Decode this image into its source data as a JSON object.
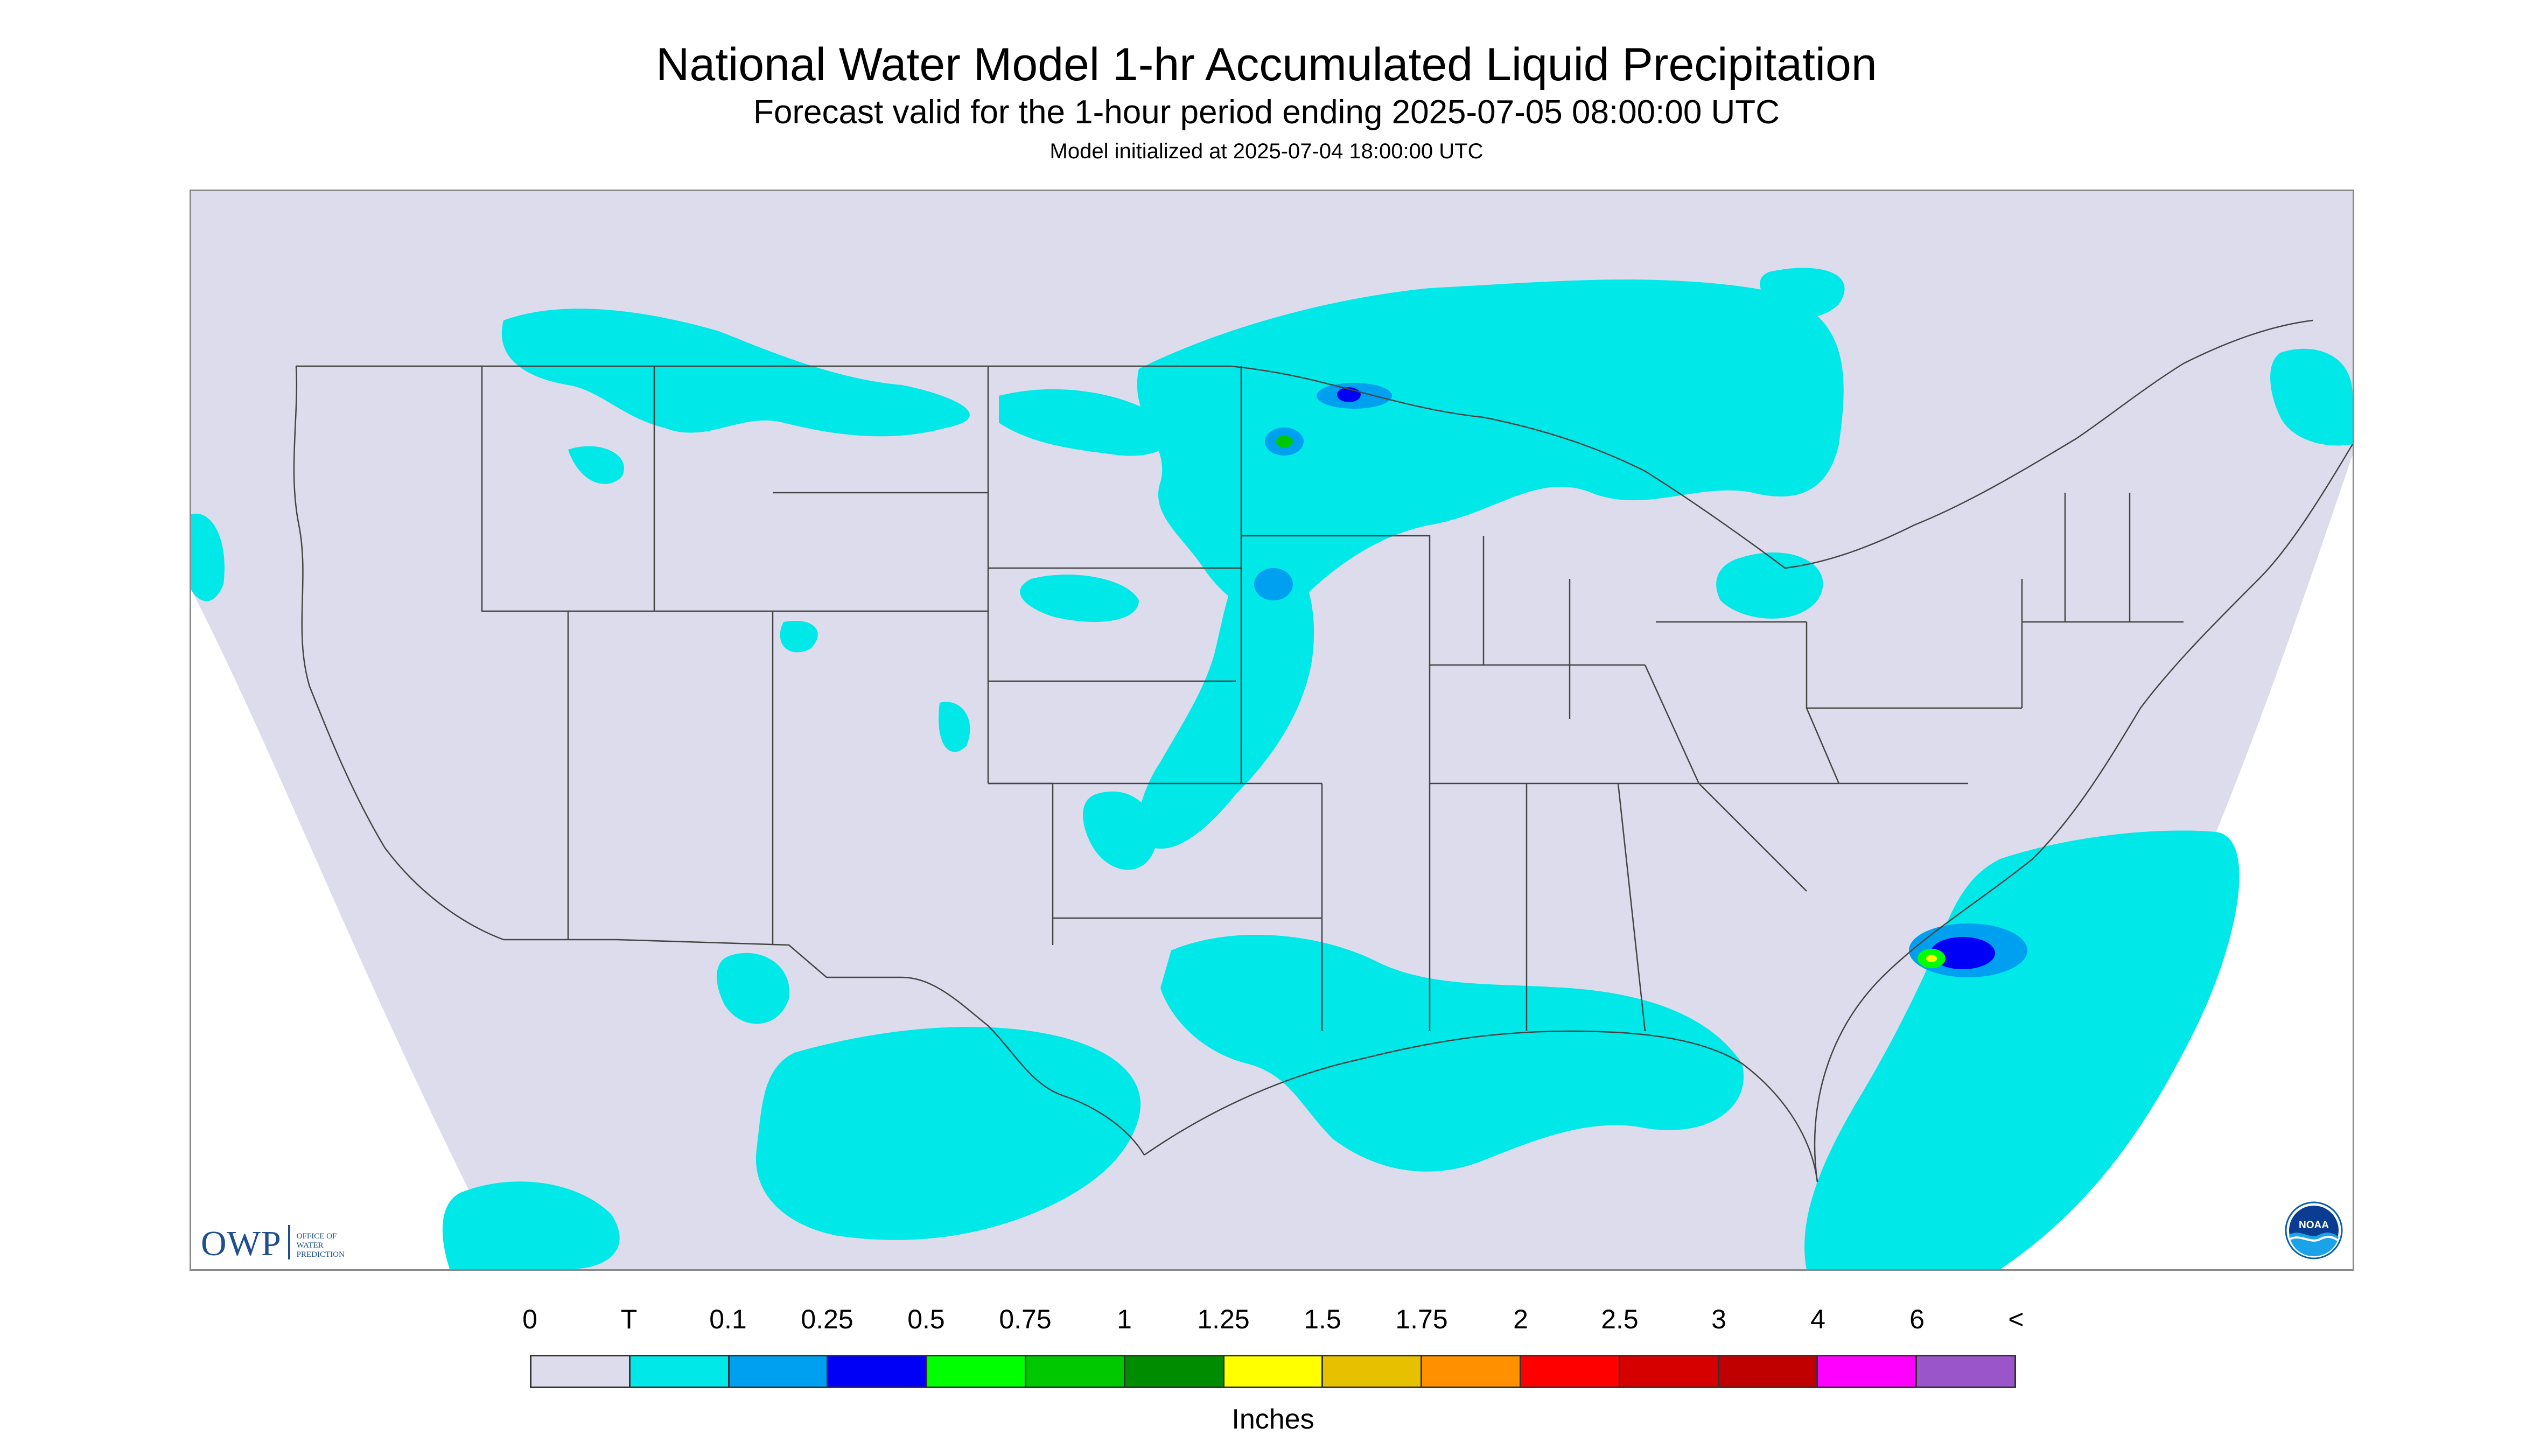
{
  "title": "National Water Model 1-hr Accumulated Liquid Precipitation",
  "subtitle": "Forecast valid for the 1-hour period ending 2025-07-05 08:00:00 UTC",
  "init_line": "Model initialized at 2025-07-04 18:00:00 UTC",
  "logos": {
    "owp_text": "OWP",
    "owp_subtext": [
      "OFFICE OF",
      "WATER",
      "PREDICTION"
    ],
    "noaa_text": "NOAA"
  },
  "legend": {
    "labels": [
      "0",
      "T",
      "0.1",
      "0.25",
      "0.5",
      "0.75",
      "1",
      "1.25",
      "1.5",
      "1.75",
      "2",
      "2.5",
      "3",
      "4",
      "6",
      "<"
    ],
    "colors": [
      "#dcdcec",
      "#00e8e8",
      "#00a0f0",
      "#0000f6",
      "#00ff00",
      "#00c800",
      "#008c00",
      "#ffff00",
      "#e7c000",
      "#ff9000",
      "#ff0000",
      "#d60000",
      "#c00000",
      "#ff00ff",
      "#9955c9"
    ],
    "units": "Inches"
  },
  "colors": {
    "background_domain": "#dcdcec",
    "outside_domain": "#ffffff",
    "light_precip": "#00e8e8",
    "boundaries": "#444444"
  }
}
